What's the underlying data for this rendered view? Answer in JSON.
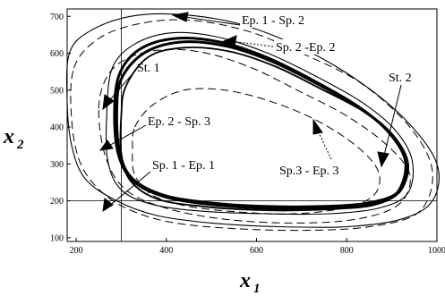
{
  "chart_data": {
    "type": "line",
    "x_axis": {
      "label": "x",
      "subscript": "1",
      "range": [
        180,
        1000
      ],
      "ticks": [
        "200",
        "400",
        "600",
        "800",
        "1000"
      ]
    },
    "y_axis": {
      "label": "x",
      "subscript": "2",
      "range": [
        90,
        720
      ],
      "ticks": [
        "100",
        "200",
        "300",
        "400",
        "500",
        "600",
        "700"
      ]
    },
    "reference_lines": {
      "vertical_x": 300,
      "horizontal_y": 200
    },
    "annotations": [
      "Ep. 1 - Sp. 2",
      "Sp. 2 -Ep. 2",
      "St. 1",
      "St. 2",
      "Ep. 2 - Sp. 3",
      "Sp. 1 - Ep. 1",
      "Sp.3 - Ep. 3"
    ],
    "curves": [
      {
        "style": "thin-solid",
        "points": [
          [
            185,
            600
          ],
          [
            230,
            660
          ],
          [
            320,
            700
          ],
          [
            430,
            705
          ],
          [
            560,
            680
          ],
          [
            690,
            620
          ],
          [
            820,
            530
          ],
          [
            930,
            420
          ],
          [
            1000,
            300
          ],
          [
            990,
            200
          ],
          [
            920,
            150
          ],
          [
            800,
            130
          ],
          [
            650,
            130
          ],
          [
            500,
            140
          ],
          [
            380,
            160
          ],
          [
            290,
            200
          ],
          [
            220,
            260
          ],
          [
            190,
            350
          ],
          [
            180,
            470
          ]
        ]
      },
      {
        "style": "dashed",
        "points": [
          [
            195,
            560
          ],
          [
            250,
            640
          ],
          [
            340,
            680
          ],
          [
            450,
            690
          ],
          [
            580,
            660
          ],
          [
            700,
            600
          ],
          [
            830,
            520
          ],
          [
            940,
            400
          ],
          [
            990,
            280
          ],
          [
            960,
            170
          ],
          [
            850,
            130
          ],
          [
            700,
            120
          ],
          [
            550,
            125
          ],
          [
            420,
            140
          ],
          [
            330,
            170
          ],
          [
            260,
            220
          ],
          [
            210,
            300
          ],
          [
            190,
            420
          ]
        ]
      },
      {
        "style": "thick",
        "points": [
          [
            295,
            540
          ],
          [
            340,
            610
          ],
          [
            420,
            640
          ],
          [
            520,
            630
          ],
          [
            620,
            590
          ],
          [
            720,
            530
          ],
          [
            820,
            460
          ],
          [
            890,
            390
          ],
          [
            930,
            310
          ],
          [
            920,
            230
          ],
          [
            860,
            190
          ],
          [
            760,
            180
          ],
          [
            620,
            180
          ],
          [
            500,
            190
          ],
          [
            400,
            210
          ],
          [
            330,
            250
          ],
          [
            295,
            320
          ],
          [
            285,
            430
          ]
        ]
      },
      {
        "style": "thick",
        "points": [
          [
            300,
            530
          ],
          [
            350,
            600
          ],
          [
            430,
            630
          ],
          [
            530,
            620
          ],
          [
            630,
            580
          ],
          [
            730,
            520
          ],
          [
            830,
            450
          ],
          [
            900,
            380
          ],
          [
            935,
            300
          ],
          [
            915,
            225
          ],
          [
            850,
            195
          ],
          [
            750,
            185
          ],
          [
            615,
            185
          ],
          [
            495,
            195
          ],
          [
            395,
            215
          ],
          [
            325,
            260
          ],
          [
            297,
            330
          ],
          [
            290,
            440
          ]
        ]
      },
      {
        "style": "medium",
        "points": [
          [
            310,
            510
          ],
          [
            360,
            590
          ],
          [
            440,
            615
          ],
          [
            540,
            605
          ],
          [
            640,
            565
          ],
          [
            740,
            505
          ],
          [
            840,
            440
          ],
          [
            905,
            370
          ],
          [
            930,
            295
          ],
          [
            905,
            215
          ],
          [
            830,
            185
          ],
          [
            720,
            175
          ],
          [
            600,
            175
          ],
          [
            480,
            185
          ],
          [
            380,
            205
          ],
          [
            320,
            255
          ],
          [
            300,
            330
          ],
          [
            300,
            430
          ]
        ]
      },
      {
        "style": "thin-solid",
        "points": [
          [
            280,
            560
          ],
          [
            330,
            625
          ],
          [
            410,
            655
          ],
          [
            510,
            645
          ],
          [
            615,
            605
          ],
          [
            720,
            545
          ],
          [
            830,
            470
          ],
          [
            905,
            395
          ],
          [
            945,
            310
          ],
          [
            935,
            220
          ],
          [
            870,
            180
          ],
          [
            760,
            165
          ],
          [
            620,
            165
          ],
          [
            480,
            172
          ],
          [
            370,
            190
          ],
          [
            300,
            230
          ],
          [
            270,
            310
          ],
          [
            268,
            440
          ]
        ]
      },
      {
        "style": "dashed",
        "points": [
          [
            330,
            400
          ],
          [
            370,
            460
          ],
          [
            440,
            500
          ],
          [
            530,
            500
          ],
          [
            630,
            470
          ],
          [
            730,
            420
          ],
          [
            820,
            350
          ],
          [
            870,
            280
          ],
          [
            860,
            215
          ],
          [
            790,
            180
          ],
          [
            680,
            165
          ],
          [
            560,
            170
          ],
          [
            450,
            185
          ],
          [
            370,
            215
          ],
          [
            330,
            270
          ],
          [
            325,
            340
          ]
        ]
      },
      {
        "style": "dashed",
        "points": [
          [
            250,
            450
          ],
          [
            270,
            540
          ],
          [
            320,
            590
          ],
          [
            400,
            610
          ],
          [
            490,
            600
          ],
          [
            590,
            560
          ],
          [
            690,
            500
          ],
          [
            800,
            430
          ],
          [
            890,
            350
          ],
          [
            940,
            270
          ],
          [
            915,
            190
          ],
          [
            820,
            150
          ],
          [
            680,
            140
          ],
          [
            530,
            150
          ],
          [
            400,
            180
          ],
          [
            310,
            230
          ],
          [
            265,
            320
          ]
        ]
      }
    ]
  }
}
